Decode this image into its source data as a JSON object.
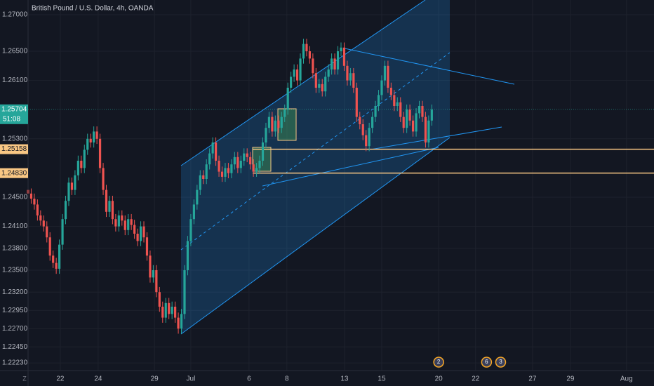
{
  "chart_data": {
    "type": "candlestick",
    "title": "British Pound / U.S. Dollar, 4h, OANDA",
    "axis_corner_label": "Z",
    "up_color": "#26a69a",
    "down_color": "#ef5350",
    "grid": true,
    "xlim": [
      0,
      200
    ],
    "ylim": [
      1.22125,
      1.27202
    ],
    "yticks": [
      {
        "value": 1.27,
        "label": "1.27000"
      },
      {
        "value": 1.265,
        "label": "1.26500"
      },
      {
        "value": 1.261,
        "label": "1.26100"
      },
      {
        "value": 1.253,
        "label": "1.25300"
      },
      {
        "value": 1.245,
        "label": "1.24500"
      },
      {
        "value": 1.241,
        "label": "1.24100"
      },
      {
        "value": 1.238,
        "label": "1.23800"
      },
      {
        "value": 1.235,
        "label": "1.23500"
      },
      {
        "value": 1.232,
        "label": "1.23200"
      },
      {
        "value": 1.2295,
        "label": "1.22950"
      },
      {
        "value": 1.227,
        "label": "1.22700"
      },
      {
        "value": 1.2245,
        "label": "1.22450"
      },
      {
        "value": 1.2223,
        "label": "1.22230"
      }
    ],
    "xticks": [
      {
        "value": 10.3,
        "label": "22"
      },
      {
        "value": 22.4,
        "label": "24"
      },
      {
        "value": 40.4,
        "label": "29"
      },
      {
        "value": 52.0,
        "label": "Jul"
      },
      {
        "value": 70.6,
        "label": "6"
      },
      {
        "value": 82.7,
        "label": "8"
      },
      {
        "value": 101.1,
        "label": "13"
      },
      {
        "value": 113.0,
        "label": "15"
      },
      {
        "value": 131.2,
        "label": "20"
      },
      {
        "value": 143.0,
        "label": "22"
      },
      {
        "value": 161.2,
        "label": "27"
      },
      {
        "value": 173.3,
        "label": "29"
      },
      {
        "value": 191.2,
        "label": "Aug"
      }
    ],
    "last_price": {
      "value": 1.25704,
      "label": "1.25704",
      "countdown": "51:08",
      "color": "#26a69a"
    },
    "levels": [
      {
        "value": 1.25158,
        "label": "1.25158",
        "color": "#f9c784"
      },
      {
        "value": 1.2483,
        "label": "1.24830",
        "color": "#f9c784"
      }
    ],
    "events": [
      {
        "x": 131.2,
        "label": "2"
      },
      {
        "x": 146.5,
        "label": "6"
      },
      {
        "x": 151.0,
        "label": "3"
      }
    ],
    "candles": [
      [
        1.246,
        1.2467,
        1.2448,
        1.2455
      ],
      [
        1.2455,
        1.2462,
        1.2441,
        1.2448
      ],
      [
        1.2448,
        1.2455,
        1.2433,
        1.244
      ],
      [
        1.244,
        1.2447,
        1.2418,
        1.2425
      ],
      [
        1.2425,
        1.2432,
        1.2411,
        1.2418
      ],
      [
        1.2418,
        1.2425,
        1.2403,
        1.241
      ],
      [
        1.241,
        1.2417,
        1.2388,
        1.2395
      ],
      [
        1.2395,
        1.2402,
        1.2363,
        1.237
      ],
      [
        1.237,
        1.2377,
        1.2353,
        1.236
      ],
      [
        1.236,
        1.2367,
        1.2345,
        1.2352
      ],
      [
        1.2352,
        1.2392,
        1.2345,
        1.2385
      ],
      [
        1.2385,
        1.2427,
        1.2378,
        1.242
      ],
      [
        1.242,
        1.2452,
        1.2413,
        1.2445
      ],
      [
        1.2445,
        1.2477,
        1.2438,
        1.247
      ],
      [
        1.247,
        1.2477,
        1.2453,
        1.246
      ],
      [
        1.246,
        1.2487,
        1.2453,
        1.248
      ],
      [
        1.248,
        1.2507,
        1.2473,
        1.25
      ],
      [
        1.25,
        1.2507,
        1.2483,
        1.249
      ],
      [
        1.249,
        1.2522,
        1.2483,
        1.2515
      ],
      [
        1.2515,
        1.2537,
        1.2508,
        1.253
      ],
      [
        1.253,
        1.2537,
        1.2518,
        1.2525
      ],
      [
        1.2525,
        1.2547,
        1.2518,
        1.254
      ],
      [
        1.254,
        1.2547,
        1.2523,
        1.253
      ],
      [
        1.253,
        1.2537,
        1.2483,
        1.249
      ],
      [
        1.249,
        1.2497,
        1.2453,
        1.246
      ],
      [
        1.246,
        1.2467,
        1.2423,
        1.243
      ],
      [
        1.243,
        1.2452,
        1.2423,
        1.2445
      ],
      [
        1.2445,
        1.2452,
        1.2413,
        1.242
      ],
      [
        1.242,
        1.2427,
        1.2403,
        1.241
      ],
      [
        1.241,
        1.2432,
        1.2403,
        1.2425
      ],
      [
        1.2425,
        1.2432,
        1.2411,
        1.2418
      ],
      [
        1.2418,
        1.2425,
        1.2398,
        1.2405
      ],
      [
        1.2405,
        1.2427,
        1.2398,
        1.242
      ],
      [
        1.242,
        1.2427,
        1.2405,
        1.2412
      ],
      [
        1.2412,
        1.2419,
        1.2393,
        1.24
      ],
      [
        1.24,
        1.2407,
        1.2383,
        1.239
      ],
      [
        1.239,
        1.2417,
        1.2383,
        1.241
      ],
      [
        1.241,
        1.2417,
        1.2388,
        1.2395
      ],
      [
        1.2395,
        1.2402,
        1.2363,
        1.237
      ],
      [
        1.237,
        1.2377,
        1.2333,
        1.234
      ],
      [
        1.234,
        1.2357,
        1.2333,
        1.235
      ],
      [
        1.235,
        1.2357,
        1.2313,
        1.232
      ],
      [
        1.232,
        1.2327,
        1.2293,
        1.23
      ],
      [
        1.23,
        1.2307,
        1.2278,
        1.2285
      ],
      [
        1.2285,
        1.2312,
        1.2278,
        1.2305
      ],
      [
        1.2305,
        1.2312,
        1.2283,
        1.229
      ],
      [
        1.229,
        1.2307,
        1.2283,
        1.23
      ],
      [
        1.23,
        1.2307,
        1.2278,
        1.2285
      ],
      [
        1.2285,
        1.2292,
        1.2263,
        1.227
      ],
      [
        1.227,
        1.2297,
        1.2263,
        1.229
      ],
      [
        1.229,
        1.2357,
        1.2283,
        1.235
      ],
      [
        1.235,
        1.2397,
        1.2343,
        1.239
      ],
      [
        1.239,
        1.2427,
        1.2383,
        1.242
      ],
      [
        1.242,
        1.2447,
        1.2413,
        1.244
      ],
      [
        1.244,
        1.2467,
        1.2433,
        1.246
      ],
      [
        1.246,
        1.2487,
        1.2453,
        1.248
      ],
      [
        1.248,
        1.2487,
        1.2468,
        1.2475
      ],
      [
        1.2475,
        1.2502,
        1.2468,
        1.2495
      ],
      [
        1.2495,
        1.2517,
        1.2488,
        1.251
      ],
      [
        1.251,
        1.2532,
        1.2503,
        1.2525
      ],
      [
        1.2525,
        1.2532,
        1.2493,
        1.25
      ],
      [
        1.25,
        1.2507,
        1.2478,
        1.2485
      ],
      [
        1.2485,
        1.2492,
        1.2471,
        1.2478
      ],
      [
        1.2478,
        1.2497,
        1.2471,
        1.249
      ],
      [
        1.249,
        1.2497,
        1.2476,
        1.2483
      ],
      [
        1.2483,
        1.2502,
        1.2476,
        1.2495
      ],
      [
        1.2495,
        1.2512,
        1.2488,
        1.2505
      ],
      [
        1.2505,
        1.2512,
        1.2483,
        1.249
      ],
      [
        1.249,
        1.2507,
        1.2483,
        1.25
      ],
      [
        1.25,
        1.2517,
        1.2493,
        1.251
      ],
      [
        1.251,
        1.2517,
        1.2498,
        1.2505
      ],
      [
        1.2505,
        1.2512,
        1.2488,
        1.2495
      ],
      [
        1.2495,
        1.2502,
        1.2478,
        1.2485
      ],
      [
        1.2485,
        1.2497,
        1.2478,
        1.249
      ],
      [
        1.249,
        1.2507,
        1.2483,
        1.25
      ],
      [
        1.25,
        1.2532,
        1.2493,
        1.2525
      ],
      [
        1.2525,
        1.2552,
        1.2518,
        1.2545
      ],
      [
        1.2545,
        1.2567,
        1.2538,
        1.256
      ],
      [
        1.256,
        1.2567,
        1.2533,
        1.254
      ],
      [
        1.254,
        1.2562,
        1.2533,
        1.2555
      ],
      [
        1.2555,
        1.2562,
        1.2538,
        1.2545
      ],
      [
        1.2545,
        1.2567,
        1.2538,
        1.256
      ],
      [
        1.256,
        1.2577,
        1.2553,
        1.257
      ],
      [
        1.257,
        1.2607,
        1.2563,
        1.26
      ],
      [
        1.26,
        1.2622,
        1.2593,
        1.2615
      ],
      [
        1.2615,
        1.2632,
        1.2608,
        1.2625
      ],
      [
        1.2625,
        1.2632,
        1.2603,
        1.261
      ],
      [
        1.261,
        1.2647,
        1.2603,
        1.264
      ],
      [
        1.264,
        1.2667,
        1.2633,
        1.266
      ],
      [
        1.266,
        1.2667,
        1.2643,
        1.265
      ],
      [
        1.265,
        1.2657,
        1.2633,
        1.264
      ],
      [
        1.264,
        1.2647,
        1.2613,
        1.262
      ],
      [
        1.262,
        1.2627,
        1.2593,
        1.26
      ],
      [
        1.26,
        1.2612,
        1.2593,
        1.2605
      ],
      [
        1.2605,
        1.2612,
        1.2588,
        1.2595
      ],
      [
        1.2595,
        1.2622,
        1.2588,
        1.2615
      ],
      [
        1.2615,
        1.2632,
        1.2608,
        1.2625
      ],
      [
        1.2625,
        1.2647,
        1.2618,
        1.264
      ],
      [
        1.264,
        1.2647,
        1.2618,
        1.2625
      ],
      [
        1.2625,
        1.2657,
        1.2618,
        1.265
      ],
      [
        1.265,
        1.2662,
        1.2643,
        1.2655
      ],
      [
        1.2655,
        1.2662,
        1.2623,
        1.263
      ],
      [
        1.263,
        1.2637,
        1.2603,
        1.261
      ],
      [
        1.261,
        1.2627,
        1.2603,
        1.262
      ],
      [
        1.262,
        1.2627,
        1.2593,
        1.26
      ],
      [
        1.26,
        1.2607,
        1.2553,
        1.256
      ],
      [
        1.256,
        1.2567,
        1.2543,
        1.255
      ],
      [
        1.255,
        1.2557,
        1.2528,
        1.2535
      ],
      [
        1.2535,
        1.2542,
        1.2513,
        1.252
      ],
      [
        1.252,
        1.2552,
        1.2513,
        1.2545
      ],
      [
        1.2545,
        1.2567,
        1.2538,
        1.256
      ],
      [
        1.256,
        1.2582,
        1.2553,
        1.2575
      ],
      [
        1.2575,
        1.2597,
        1.2568,
        1.259
      ],
      [
        1.259,
        1.2617,
        1.2583,
        1.261
      ],
      [
        1.261,
        1.2637,
        1.2603,
        1.263
      ],
      [
        1.263,
        1.2637,
        1.2593,
        1.26
      ],
      [
        1.26,
        1.2607,
        1.2583,
        1.259
      ],
      [
        1.259,
        1.2597,
        1.2568,
        1.2575
      ],
      [
        1.2575,
        1.2587,
        1.2568,
        1.258
      ],
      [
        1.258,
        1.2587,
        1.2553,
        1.256
      ],
      [
        1.256,
        1.2567,
        1.2538,
        1.2545
      ],
      [
        1.2545,
        1.2577,
        1.2538,
        1.257
      ],
      [
        1.257,
        1.2577,
        1.2548,
        1.2555
      ],
      [
        1.2555,
        1.2562,
        1.2533,
        1.254
      ],
      [
        1.254,
        1.2572,
        1.2533,
        1.2565
      ],
      [
        1.2565,
        1.2582,
        1.2558,
        1.2575
      ],
      [
        1.2575,
        1.2582,
        1.2553,
        1.256
      ],
      [
        1.256,
        1.2567,
        1.2518,
        1.2525
      ],
      [
        1.2525,
        1.2562,
        1.2518,
        1.2555
      ],
      [
        1.2555,
        1.2577,
        1.2548,
        1.257
      ]
    ]
  }
}
